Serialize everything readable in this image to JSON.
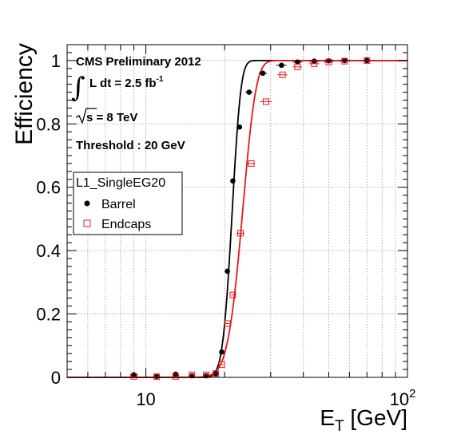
{
  "chart_data": {
    "type": "scatter",
    "title": "",
    "xlabel": "E",
    "xlabel_sub": "T",
    "xlabel_unit": " [GeV]",
    "ylabel": "Efficiency",
    "xscale": "log",
    "xlim": [
      5,
      100
    ],
    "ylim": [
      0,
      1.05
    ],
    "grid": true,
    "x_ticks": [
      {
        "value": 10,
        "label": "10"
      },
      {
        "value": 100,
        "label": "10",
        "sup": "2"
      }
    ],
    "y_ticks": [
      {
        "value": 0,
        "label": "0"
      },
      {
        "value": 0.2,
        "label": "0.2"
      },
      {
        "value": 0.4,
        "label": "0.4"
      },
      {
        "value": 0.6,
        "label": "0.6"
      },
      {
        "value": 0.8,
        "label": "0.8"
      },
      {
        "value": 1.0,
        "label": "1"
      }
    ],
    "series": [
      {
        "name": "Barrel",
        "color": "#000000",
        "marker": "filled-circle",
        "points": [
          {
            "x": 9.0,
            "y": 0.008,
            "xerr": 0.3
          },
          {
            "x": 11.0,
            "y": 0.003,
            "xerr": 0.3
          },
          {
            "x": 13.0,
            "y": 0.01,
            "xerr": 0.3
          },
          {
            "x": 15.0,
            "y": 0.005,
            "xerr": 0.3
          },
          {
            "x": 17.0,
            "y": 0.005,
            "xerr": 0.3
          },
          {
            "x": 18.5,
            "y": 0.012,
            "xerr": 0.3
          },
          {
            "x": 19.5,
            "y": 0.08,
            "xerr": 0.3
          },
          {
            "x": 20.5,
            "y": 0.335,
            "xerr": 0.3
          },
          {
            "x": 21.5,
            "y": 0.62,
            "xerr": 0.3
          },
          {
            "x": 22.8,
            "y": 0.79,
            "xerr": 0.4
          },
          {
            "x": 24.8,
            "y": 0.9,
            "xerr": 0.8
          },
          {
            "x": 28.0,
            "y": 0.96,
            "xerr": 1.0
          },
          {
            "x": 33.0,
            "y": 0.985,
            "xerr": 1.5
          },
          {
            "x": 38.0,
            "y": 0.995,
            "xerr": 1.5
          },
          {
            "x": 44.0,
            "y": 0.998,
            "xerr": 2.0
          },
          {
            "x": 50.0,
            "y": 0.999,
            "xerr": 2.0
          },
          {
            "x": 57.5,
            "y": 1.0,
            "xerr": 2.5
          },
          {
            "x": 70.0,
            "y": 1.0,
            "xerr": 4.0
          }
        ],
        "fit": {
          "mean": 21.3,
          "width": 1.35
        }
      },
      {
        "name": "Endcaps",
        "color": "#e8161c",
        "marker": "open-square",
        "points": [
          {
            "x": 9.0,
            "y": 0.003,
            "xerr": 0.3
          },
          {
            "x": 11.0,
            "y": 0.002,
            "xerr": 0.3
          },
          {
            "x": 13.0,
            "y": 0.003,
            "xerr": 0.3
          },
          {
            "x": 15.0,
            "y": 0.008,
            "xerr": 0.3
          },
          {
            "x": 17.0,
            "y": 0.008,
            "xerr": 0.3
          },
          {
            "x": 18.5,
            "y": 0.012,
            "xerr": 0.3
          },
          {
            "x": 19.5,
            "y": 0.04,
            "xerr": 0.3
          },
          {
            "x": 20.5,
            "y": 0.17,
            "xerr": 0.3
          },
          {
            "x": 21.5,
            "y": 0.26,
            "xerr": 0.3
          },
          {
            "x": 23.0,
            "y": 0.455,
            "xerr": 0.8
          },
          {
            "x": 25.3,
            "y": 0.675,
            "xerr": 0.8
          },
          {
            "x": 28.8,
            "y": 0.87,
            "xerr": 1.5
          },
          {
            "x": 33.3,
            "y": 0.955,
            "xerr": 1.5
          },
          {
            "x": 38.0,
            "y": 0.98,
            "xerr": 1.5
          },
          {
            "x": 44.0,
            "y": 0.99,
            "xerr": 2.0
          },
          {
            "x": 50.0,
            "y": 0.995,
            "xerr": 2.0
          },
          {
            "x": 57.5,
            "y": 0.998,
            "xerr": 2.5
          },
          {
            "x": 70.0,
            "y": 1.0,
            "xerr": 4.0
          }
        ],
        "fit": {
          "mean": 23.3,
          "width": 2.3
        }
      }
    ],
    "annotations": {
      "experiment": "CMS Preliminary 2012",
      "lumi_prefix": "L dt = 2.5 fb",
      "lumi_sup": "-1",
      "energy": "s = 8 TeV",
      "threshold": "Threshold : 20 GeV"
    },
    "legend": {
      "title": "L1_SingleEG20",
      "position": "middle-left",
      "entries": [
        "Barrel",
        "Endcaps"
      ]
    }
  }
}
